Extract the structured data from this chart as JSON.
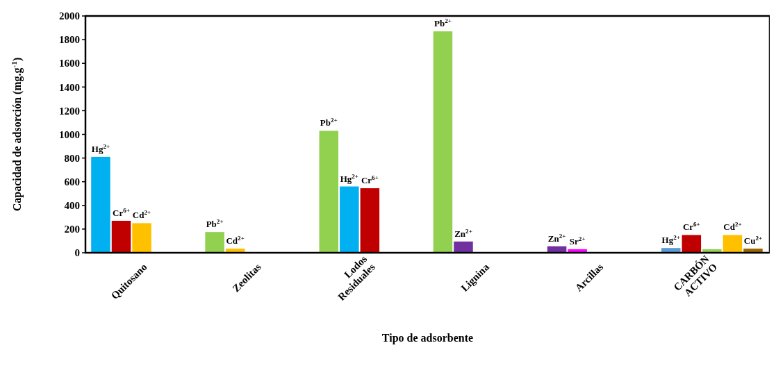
{
  "chart_data": {
    "type": "bar",
    "xlabel": "Tipo de adsorbente",
    "ylabel": "Capacidad de adsorción (mg.g$^{-1}$)",
    "categories": [
      "Quitosano",
      "Zeolitas",
      "Lodos\nResiduales",
      "Lignina",
      "Arcillas",
      "CARBÓN\nACTIVO"
    ],
    "ylim": [
      0,
      2000
    ],
    "yticks": [
      0,
      200,
      400,
      600,
      800,
      1000,
      1200,
      1400,
      1600,
      1800,
      2000
    ],
    "grid": false,
    "series": [
      {
        "values": [
          810,
          175,
          1030,
          1870,
          55,
          40
        ],
        "colors": [
          "#00b0f0",
          "#92d050",
          "#92d050",
          "#92d050",
          "#7030a0",
          "#5b9bd5"
        ],
        "value_labels": [
          "Hg$^{2+}$",
          "Pb$^{2+}$",
          "Pb$^{2+}$",
          "Pb$^{2+}$",
          "Zn$^{2+}$",
          "Hg$^{2+}$"
        ]
      },
      {
        "values": [
          270,
          35,
          560,
          95,
          30,
          150
        ],
        "colors": [
          "#c00000",
          "#ffc000",
          "#00b0f0",
          "#7030a0",
          "#ff00ff",
          "#c00000"
        ],
        "value_labels": [
          "Cr$^{6+}$",
          "Cd$^{2+}$",
          "Hg$^{2+}$",
          "Zn$^{2+}$",
          "Sr$^{2+}$",
          "Cr$^{6+}$"
        ]
      },
      {
        "values": [
          250,
          null,
          545,
          null,
          null,
          30
        ],
        "colors": [
          "#ffc000",
          null,
          "#c00000",
          null,
          null,
          "#92d050"
        ],
        "value_labels": [
          "Cd$^{2+}$",
          null,
          "Cr$^{6+}$",
          null,
          null,
          null
        ]
      },
      {
        "values": [
          null,
          null,
          null,
          null,
          null,
          150
        ],
        "colors": [
          null,
          null,
          null,
          null,
          null,
          "#ffc000"
        ],
        "value_labels": [
          null,
          null,
          null,
          null,
          null,
          "Cd$^{2+}$"
        ]
      },
      {
        "values": [
          null,
          null,
          null,
          null,
          null,
          35
        ],
        "colors": [
          null,
          null,
          null,
          null,
          null,
          "#9c6500"
        ],
        "value_labels": [
          null,
          null,
          null,
          null,
          null,
          "Cu$^{2+}$"
        ]
      }
    ]
  }
}
